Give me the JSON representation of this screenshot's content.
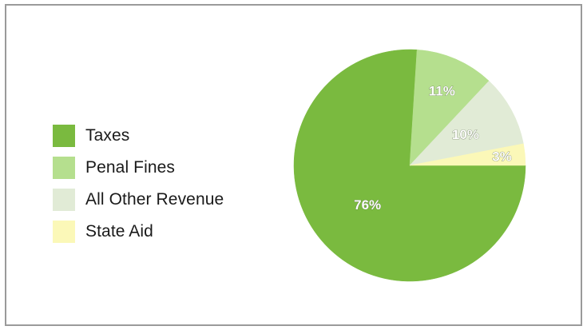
{
  "chart_data": {
    "type": "pie",
    "title": "",
    "legend_position": "left",
    "slices": [
      {
        "name": "Taxes",
        "value": 76,
        "label": "76%",
        "color": "#7aba3f"
      },
      {
        "name": "Penal Fines",
        "value": 11,
        "label": "11%",
        "color": "#b5df8e"
      },
      {
        "name": "All Other Revenue",
        "value": 10,
        "label": "10%",
        "color": "#e1ebd6"
      },
      {
        "name": "State Aid",
        "value": 3,
        "label": "3%",
        "color": "#fbf8b8"
      }
    ]
  }
}
